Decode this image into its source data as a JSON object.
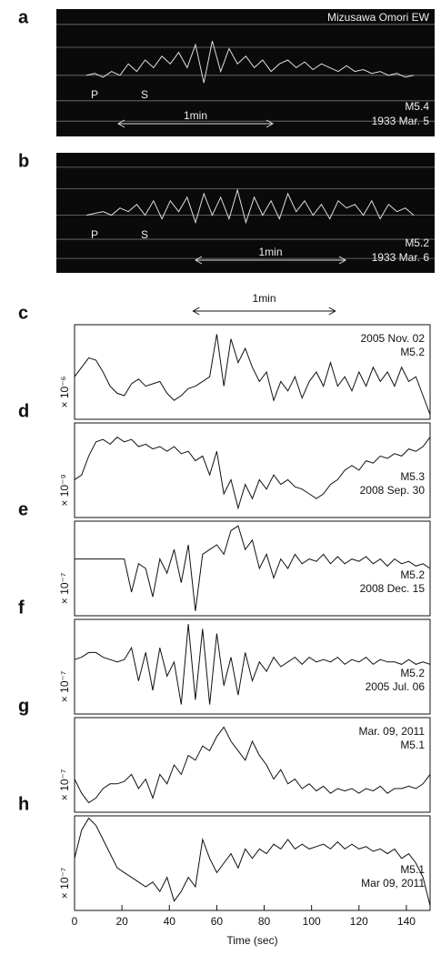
{
  "chart_data": [
    {
      "type": "record",
      "label": "a",
      "station": "Mizusawa Omori EW",
      "phases": [
        "P",
        "S"
      ],
      "scale_label": "1min",
      "annotations": [
        "M5.4",
        "1933 Mar. 5"
      ],
      "values": [
        0,
        0.05,
        -0.05,
        0.1,
        0.0,
        0.3,
        0.1,
        0.4,
        0.2,
        0.5,
        0.3,
        0.6,
        0.2,
        0.8,
        -0.2,
        0.9,
        0.1,
        0.7,
        0.3,
        0.5,
        0.2,
        0.4,
        0.1,
        0.3,
        0.4,
        0.2,
        0.35,
        0.15,
        0.3,
        0.2,
        0.1,
        0.25,
        0.1,
        0.15,
        0.05,
        0.1,
        0.0,
        0.05,
        -0.05,
        0.0
      ]
    },
    {
      "type": "record",
      "label": "b",
      "phases": [
        "P",
        "S"
      ],
      "scale_label": "1min",
      "annotations": [
        "M5.2",
        "1933 Mar. 6"
      ],
      "values": [
        0,
        0.05,
        0.1,
        0.0,
        0.2,
        0.1,
        0.3,
        0.0,
        0.4,
        -0.1,
        0.4,
        0.1,
        0.5,
        -0.2,
        0.6,
        0.0,
        0.5,
        -0.1,
        0.7,
        -0.2,
        0.5,
        0.0,
        0.4,
        -0.1,
        0.6,
        0.1,
        0.4,
        0.0,
        0.3,
        -0.1,
        0.4,
        0.2,
        0.3,
        0.0,
        0.4,
        -0.1,
        0.3,
        0.1,
        0.2,
        0.0
      ]
    },
    {
      "type": "line",
      "label": "c",
      "scale_label": "1min",
      "ylabel": "× 10⁻⁶",
      "annotations": [
        "2005 Nov. 02",
        "M5.2"
      ],
      "xlim": [
        0,
        150
      ],
      "ylim": [
        -1,
        1
      ],
      "x": [
        0,
        3,
        6,
        9,
        12,
        15,
        18,
        21,
        24,
        27,
        30,
        33,
        36,
        39,
        42,
        45,
        48,
        51,
        54,
        57,
        60,
        63,
        66,
        69,
        72,
        75,
        78,
        81,
        84,
        87,
        90,
        93,
        96,
        99,
        102,
        105,
        108,
        111,
        114,
        117,
        120,
        123,
        126,
        129,
        132,
        135,
        138,
        141,
        144,
        147,
        150
      ],
      "values": [
        -0.1,
        0.1,
        0.3,
        0.25,
        0.0,
        -0.3,
        -0.45,
        -0.5,
        -0.25,
        -0.15,
        -0.3,
        -0.25,
        -0.2,
        -0.45,
        -0.6,
        -0.5,
        -0.35,
        -0.3,
        -0.2,
        -0.1,
        0.8,
        -0.3,
        0.7,
        0.2,
        0.5,
        0.1,
        -0.2,
        0.0,
        -0.6,
        -0.2,
        -0.4,
        -0.1,
        -0.55,
        -0.2,
        0.0,
        -0.3,
        0.2,
        -0.3,
        -0.1,
        -0.4,
        0.0,
        -0.3,
        0.1,
        -0.2,
        0.0,
        -0.3,
        0.1,
        -0.2,
        -0.1,
        -0.5,
        -0.9
      ]
    },
    {
      "type": "line",
      "label": "d",
      "ylabel": "× 10⁻⁹",
      "annotations": [
        "M5.3",
        "2008 Sep. 30"
      ],
      "xlim": [
        0,
        150
      ],
      "ylim": [
        -1,
        1
      ],
      "x": [
        0,
        3,
        6,
        9,
        12,
        15,
        18,
        21,
        24,
        27,
        30,
        33,
        36,
        39,
        42,
        45,
        48,
        51,
        54,
        57,
        60,
        63,
        66,
        69,
        72,
        75,
        78,
        81,
        84,
        87,
        90,
        93,
        96,
        99,
        102,
        105,
        108,
        111,
        114,
        117,
        120,
        123,
        126,
        129,
        132,
        135,
        138,
        141,
        144,
        147,
        150
      ],
      "values": [
        -0.2,
        -0.1,
        0.3,
        0.6,
        0.65,
        0.55,
        0.7,
        0.6,
        0.65,
        0.5,
        0.55,
        0.45,
        0.5,
        0.4,
        0.5,
        0.35,
        0.4,
        0.2,
        0.3,
        -0.1,
        0.4,
        -0.5,
        -0.2,
        -0.8,
        -0.3,
        -0.6,
        -0.2,
        -0.4,
        -0.1,
        -0.3,
        -0.2,
        -0.35,
        -0.4,
        -0.5,
        -0.6,
        -0.5,
        -0.3,
        -0.2,
        0.0,
        0.1,
        0.0,
        0.2,
        0.15,
        0.3,
        0.25,
        0.35,
        0.3,
        0.45,
        0.4,
        0.5,
        0.7
      ]
    },
    {
      "type": "line",
      "label": "e",
      "ylabel": "× 10⁻⁷",
      "annotations": [
        "M5.2",
        "2008 Dec. 15"
      ],
      "xlim": [
        0,
        150
      ],
      "ylim": [
        -1,
        1
      ],
      "x": [
        0,
        3,
        6,
        9,
        12,
        15,
        18,
        21,
        24,
        27,
        30,
        33,
        36,
        39,
        42,
        45,
        48,
        51,
        54,
        57,
        60,
        63,
        66,
        69,
        72,
        75,
        78,
        81,
        84,
        87,
        90,
        93,
        96,
        99,
        102,
        105,
        108,
        111,
        114,
        117,
        120,
        123,
        126,
        129,
        132,
        135,
        138,
        141,
        144,
        147,
        150
      ],
      "values": [
        0.2,
        0.2,
        0.2,
        0.2,
        0.2,
        0.2,
        0.2,
        0.2,
        -0.5,
        0.1,
        0.0,
        -0.6,
        0.2,
        -0.1,
        0.4,
        -0.3,
        0.5,
        -0.9,
        0.3,
        0.4,
        0.5,
        0.3,
        0.8,
        0.9,
        0.4,
        0.6,
        0.0,
        0.3,
        -0.2,
        0.2,
        0.0,
        0.3,
        0.1,
        0.2,
        0.15,
        0.3,
        0.1,
        0.25,
        0.1,
        0.2,
        0.15,
        0.25,
        0.1,
        0.2,
        0.05,
        0.2,
        0.1,
        0.15,
        0.05,
        0.1,
        0.0
      ]
    },
    {
      "type": "line",
      "label": "f",
      "ylabel": "× 10⁻⁷",
      "annotations": [
        "M5.2",
        "2005 Jul. 06"
      ],
      "xlim": [
        0,
        150
      ],
      "ylim": [
        -1,
        1
      ],
      "x": [
        0,
        3,
        6,
        9,
        12,
        15,
        18,
        21,
        24,
        27,
        30,
        33,
        36,
        39,
        42,
        45,
        48,
        51,
        54,
        57,
        60,
        63,
        66,
        69,
        72,
        75,
        78,
        81,
        84,
        87,
        90,
        93,
        96,
        99,
        102,
        105,
        108,
        111,
        114,
        117,
        120,
        123,
        126,
        129,
        132,
        135,
        138,
        141,
        144,
        147,
        150
      ],
      "values": [
        0.15,
        0.2,
        0.3,
        0.3,
        0.2,
        0.15,
        0.1,
        0.15,
        0.4,
        -0.3,
        0.3,
        -0.5,
        0.4,
        -0.2,
        0.1,
        -0.8,
        0.9,
        -0.7,
        0.8,
        -0.8,
        0.7,
        -0.4,
        0.2,
        -0.6,
        0.3,
        -0.3,
        0.1,
        -0.1,
        0.2,
        0.0,
        0.1,
        0.2,
        0.05,
        0.2,
        0.1,
        0.15,
        0.1,
        0.2,
        0.05,
        0.15,
        0.1,
        0.2,
        0.05,
        0.15,
        0.1,
        0.1,
        0.05,
        0.15,
        0.05,
        0.1,
        0.05
      ]
    },
    {
      "type": "line",
      "label": "g",
      "ylabel": "× 10⁻⁷",
      "annotations": [
        "Mar. 09, 2011",
        "M5.1"
      ],
      "xlim": [
        0,
        150
      ],
      "ylim": [
        -1,
        1
      ],
      "x": [
        0,
        3,
        6,
        9,
        12,
        15,
        18,
        21,
        24,
        27,
        30,
        33,
        36,
        39,
        42,
        45,
        48,
        51,
        54,
        57,
        60,
        63,
        66,
        69,
        72,
        75,
        78,
        81,
        84,
        87,
        90,
        93,
        96,
        99,
        102,
        105,
        108,
        111,
        114,
        117,
        120,
        123,
        126,
        129,
        132,
        135,
        138,
        141,
        144,
        147,
        150
      ],
      "values": [
        -0.3,
        -0.6,
        -0.8,
        -0.7,
        -0.5,
        -0.4,
        -0.4,
        -0.35,
        -0.2,
        -0.5,
        -0.3,
        -0.7,
        -0.2,
        -0.4,
        0.0,
        -0.2,
        0.2,
        0.1,
        0.4,
        0.3,
        0.6,
        0.8,
        0.5,
        0.3,
        0.1,
        0.5,
        0.2,
        0.0,
        -0.3,
        -0.1,
        -0.4,
        -0.3,
        -0.5,
        -0.4,
        -0.55,
        -0.45,
        -0.6,
        -0.5,
        -0.55,
        -0.5,
        -0.6,
        -0.5,
        -0.55,
        -0.45,
        -0.6,
        -0.5,
        -0.5,
        -0.45,
        -0.5,
        -0.4,
        -0.2
      ]
    },
    {
      "type": "line",
      "label": "h",
      "ylabel": "× 10⁻⁷",
      "annotations": [
        "M5.1",
        "Mar 09, 2011"
      ],
      "xlim": [
        0,
        150
      ],
      "ylim": [
        -1,
        1
      ],
      "xticks": [
        0,
        20,
        40,
        60,
        80,
        100,
        120,
        140
      ],
      "xlabel": "Time (sec)",
      "x": [
        0,
        3,
        6,
        9,
        12,
        15,
        18,
        21,
        24,
        27,
        30,
        33,
        36,
        39,
        42,
        45,
        48,
        51,
        54,
        57,
        60,
        63,
        66,
        69,
        72,
        75,
        78,
        81,
        84,
        87,
        90,
        93,
        96,
        99,
        102,
        105,
        108,
        111,
        114,
        117,
        120,
        123,
        126,
        129,
        132,
        135,
        138,
        141,
        144,
        147,
        150
      ],
      "values": [
        0.1,
        0.7,
        0.95,
        0.8,
        0.5,
        0.2,
        -0.1,
        -0.2,
        -0.3,
        -0.4,
        -0.5,
        -0.4,
        -0.6,
        -0.3,
        -0.8,
        -0.6,
        -0.3,
        -0.5,
        0.5,
        0.1,
        -0.2,
        0.0,
        0.2,
        -0.1,
        0.3,
        0.1,
        0.3,
        0.2,
        0.4,
        0.3,
        0.5,
        0.3,
        0.4,
        0.3,
        0.35,
        0.4,
        0.3,
        0.45,
        0.3,
        0.4,
        0.3,
        0.35,
        0.25,
        0.3,
        0.2,
        0.3,
        0.1,
        0.2,
        0.0,
        -0.3,
        -0.9
      ]
    }
  ]
}
